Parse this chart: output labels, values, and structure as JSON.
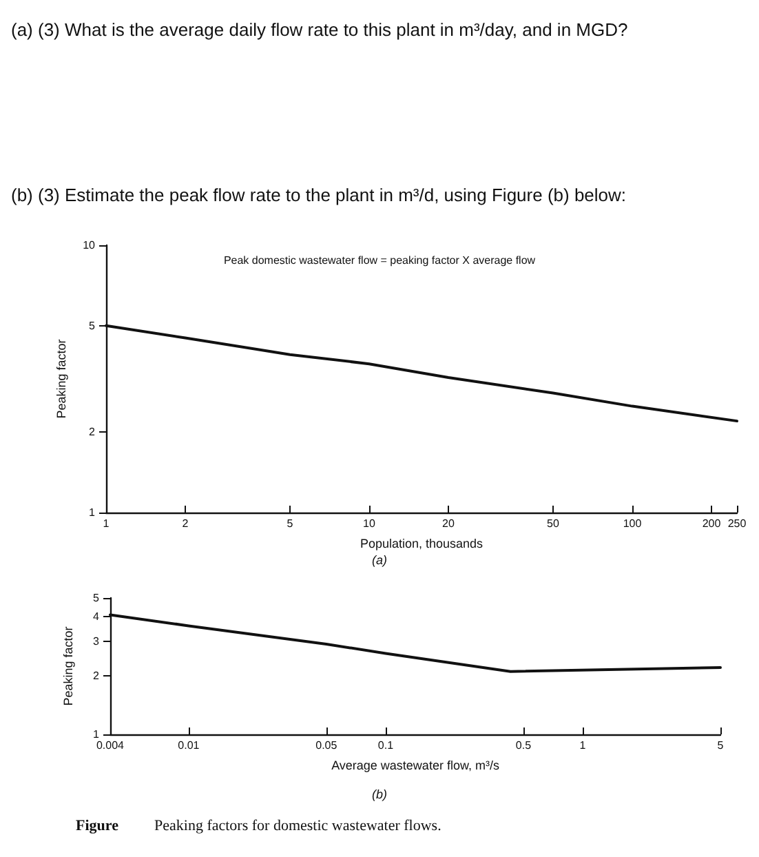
{
  "chart_data": [
    {
      "type": "line",
      "title": "Peak domestic wastewater flow = peaking factor X average flow",
      "xlabel": "Population, thousands",
      "ylabel": "Peaking factor",
      "subtitle": "(a)",
      "annotations": [
        "(a) (3) What is the average daily flow rate to this plant in m³/day, and in MGD?",
        "(b) (3) Estimate the peak flow rate to the plant in m³/d, using Figure (b) below:"
      ],
      "x": [
        1,
        2,
        5,
        10,
        20,
        50,
        100,
        250
      ],
      "values": [
        5,
        4.5,
        3.9,
        3.6,
        3.2,
        2.8,
        2.5,
        2.2
      ],
      "color": "#111111",
      "log": "xy",
      "xlim": [
        1,
        250
      ],
      "xticks": [
        1,
        2,
        5,
        10,
        20,
        50,
        100,
        200,
        250
      ],
      "ylim": [
        1,
        10
      ],
      "yticks": [
        1,
        2,
        5,
        10
      ],
      "grid": false,
      "marker": "none",
      "line_style": "solid"
    },
    {
      "type": "line",
      "xlabel": "Average wastewater flow, m³/s",
      "ylabel": "Peaking factor",
      "subtitle": "(b)",
      "annotations": [
        "Figure",
        "Peaking factors for domestic wastewater flows."
      ],
      "x": [
        0.004,
        0.01,
        0.05,
        0.1,
        0.43,
        5
      ],
      "values": [
        4.1,
        3.6,
        2.9,
        2.6,
        2.1,
        2.2
      ],
      "color": "#111111",
      "log": "xy",
      "xlim": [
        0.004,
        5
      ],
      "xticks": [
        0.004,
        0.01,
        0.05,
        0.1,
        0.5,
        1,
        5
      ],
      "ylim": [
        1,
        5
      ],
      "yticks": [
        1,
        2,
        3,
        4,
        5
      ],
      "grid": false,
      "marker": "none",
      "line_style": "solid"
    }
  ]
}
